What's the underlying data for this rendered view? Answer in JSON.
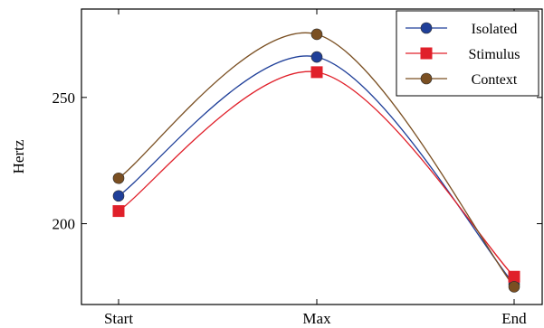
{
  "chart_data": {
    "type": "line",
    "categories": [
      "Start",
      "Max",
      "End"
    ],
    "ylabel": "Hertz",
    "xlabel": "",
    "ylim": [
      168,
      285
    ],
    "yticks": [
      200,
      250
    ],
    "grid": false,
    "legend_position": "top-right",
    "series": [
      {
        "name": "Isolated",
        "values": [
          211,
          266,
          176
        ],
        "color": "#1f3f99",
        "marker": "circle"
      },
      {
        "name": "Stimulus",
        "values": [
          205,
          260,
          179
        ],
        "color": "#e0202a",
        "marker": "square"
      },
      {
        "name": "Context",
        "values": [
          218,
          275,
          175
        ],
        "color": "#7a4f22",
        "marker": "circle"
      }
    ]
  }
}
